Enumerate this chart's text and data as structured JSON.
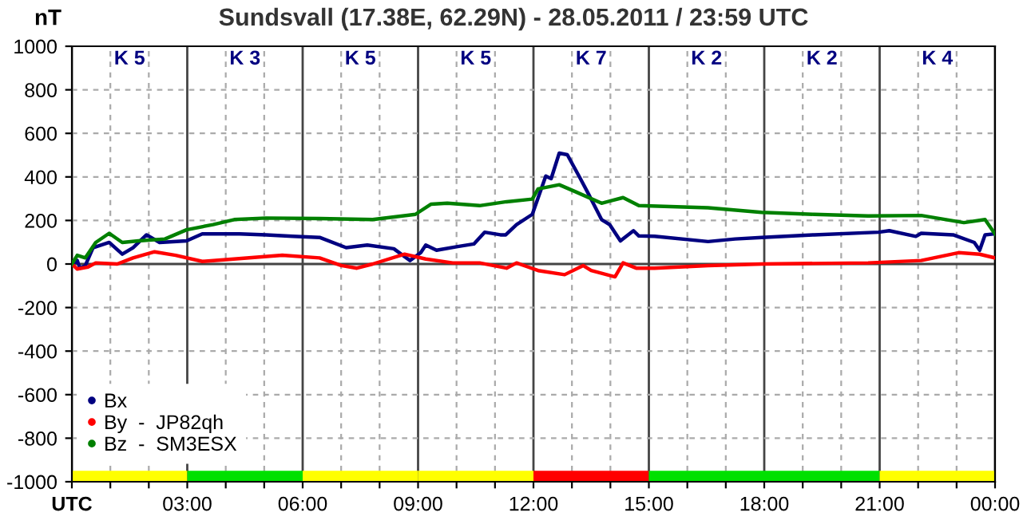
{
  "chart_data": {
    "type": "line",
    "title": "Sundsvall (17.38E, 62.29N) - 28.05.2011 / 23:59 UTC",
    "ylabel": "nT",
    "xlim": [
      0,
      24
    ],
    "ylim": [
      -1000,
      1000
    ],
    "xticks": [
      {
        "value": 0,
        "label": "UTC"
      },
      {
        "value": 1,
        "label": null
      },
      {
        "value": 2,
        "label": null
      },
      {
        "value": 3,
        "label": "03:00"
      },
      {
        "value": 4,
        "label": null
      },
      {
        "value": 5,
        "label": null
      },
      {
        "value": 6,
        "label": "06:00"
      },
      {
        "value": 7,
        "label": null
      },
      {
        "value": 8,
        "label": null
      },
      {
        "value": 9,
        "label": "09:00"
      },
      {
        "value": 10,
        "label": null
      },
      {
        "value": 11,
        "label": null
      },
      {
        "value": 12,
        "label": "12:00"
      },
      {
        "value": 13,
        "label": null
      },
      {
        "value": 14,
        "label": null
      },
      {
        "value": 15,
        "label": "15:00"
      },
      {
        "value": 16,
        "label": null
      },
      {
        "value": 17,
        "label": null
      },
      {
        "value": 18,
        "label": "18:00"
      },
      {
        "value": 19,
        "label": null
      },
      {
        "value": 20,
        "label": null
      },
      {
        "value": 21,
        "label": "21:00"
      },
      {
        "value": 22,
        "label": null
      },
      {
        "value": 23,
        "label": null
      },
      {
        "value": 24,
        "label": "00:00"
      }
    ],
    "yticks": [
      -1000,
      -800,
      -600,
      -400,
      -200,
      0,
      200,
      400,
      600,
      800,
      1000
    ],
    "grid": true,
    "legend": "bottom left",
    "marker": "none",
    "line_style": "solid",
    "annotations": [
      "K 5",
      "K 3",
      "K 5",
      "K 5",
      "K 7",
      "K 2",
      "K 2",
      "K 4"
    ],
    "series": [
      {
        "type": "bar",
        "x": [
          1.5,
          4.5,
          7.5,
          10.5,
          13.5,
          16.5,
          19.5,
          22.5
        ],
        "base": [
          -1000,
          -1000,
          -1000,
          -1000,
          -1000,
          -1000,
          -1000,
          -1000
        ],
        "values": [
          50,
          50,
          50,
          50,
          50,
          50,
          50,
          50
        ],
        "colors": [
          "#ffff00",
          "#00e000",
          "#ffff00",
          "#ffff00",
          "#ff0000",
          "#00e000",
          "#00e000",
          "#ffff00"
        ]
      },
      {
        "name": "Bx",
        "color": "#000080",
        "x": [
          0,
          0.14,
          0.21,
          0.35,
          0.55,
          0.97,
          1.31,
          1.59,
          1.94,
          2.28,
          2.98,
          3.39,
          4.36,
          5.05,
          5.74,
          6.44,
          7.13,
          7.68,
          8.37,
          8.79,
          9.07,
          9.2,
          9.48,
          10.03,
          10.45,
          10.73,
          11.14,
          11.28,
          11.56,
          11.97,
          12.32,
          12.46,
          12.67,
          12.88,
          13.22,
          13.43,
          13.77,
          13.98,
          14.26,
          14.6,
          14.74,
          15.15,
          16.54,
          17.24,
          17.93,
          19.3,
          20.97,
          21.25,
          21.94,
          22.08,
          22.91,
          23.46,
          23.6,
          23.74,
          23.95
        ],
        "values": [
          0,
          16,
          -19,
          -7,
          75,
          99,
          45,
          75,
          134,
          99,
          106,
          138,
          138,
          134,
          127,
          122,
          75,
          87,
          70,
          16,
          52,
          87,
          63,
          80,
          92,
          146,
          134,
          134,
          181,
          228,
          404,
          392,
          509,
          502,
          392,
          322,
          204,
          181,
          106,
          153,
          129,
          127,
          103,
          115,
          122,
          134,
          146,
          153,
          127,
          141,
          134,
          99,
          63,
          134,
          138
        ]
      },
      {
        "name": "By  -  JP82qh",
        "color": "#ff0000",
        "x": [
          0,
          0.14,
          0.42,
          0.62,
          1.18,
          1.59,
          2.15,
          2.7,
          3.39,
          4.08,
          5.47,
          6.44,
          7.0,
          7.41,
          7.82,
          8.65,
          9.2,
          9.9,
          10.6,
          11.3,
          11.56,
          11.83,
          12.12,
          12.81,
          13.29,
          13.5,
          14.12,
          14.33,
          14.67,
          15.15,
          16.54,
          17.93,
          20.7,
          22.08,
          23.05,
          23.6,
          24.0
        ],
        "values": [
          0,
          -23,
          -14,
          5,
          0,
          28,
          56,
          40,
          12,
          21,
          40,
          28,
          -7,
          -19,
          0,
          45,
          23,
          5,
          5,
          -19,
          5,
          -12,
          -30,
          -49,
          -7,
          -30,
          -59,
          5,
          -19,
          -19,
          -7,
          0,
          5,
          16,
          52,
          45,
          28
        ]
      },
      {
        "name": "Bz  -  SM3ESX",
        "color": "#008000",
        "x": [
          0,
          0.14,
          0.35,
          0.62,
          0.97,
          1.31,
          1.73,
          2.42,
          2.98,
          3.67,
          4.22,
          5.05,
          6.44,
          7.82,
          8.93,
          9.34,
          9.76,
          10.6,
          11.3,
          11.97,
          12.12,
          12.67,
          13.08,
          13.77,
          14.33,
          14.74,
          16.54,
          17.93,
          19.3,
          20.7,
          22.08,
          23.19,
          23.74,
          24.0
        ],
        "values": [
          0,
          40,
          28,
          99,
          141,
          99,
          106,
          115,
          157,
          181,
          204,
          211,
          209,
          204,
          228,
          275,
          279,
          268,
          286,
          298,
          345,
          364,
          333,
          279,
          305,
          268,
          258,
          237,
          228,
          221,
          223,
          190,
          204,
          138
        ]
      }
    ]
  }
}
